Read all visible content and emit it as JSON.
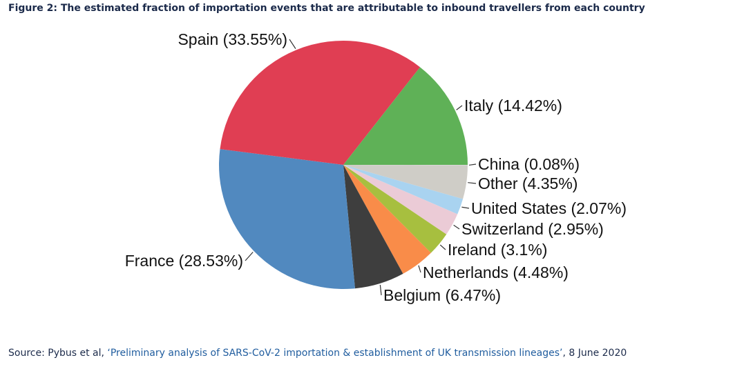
{
  "figure": {
    "title": "Figure 2: The estimated fraction of importation events that are attributable to inbound travellers from each country"
  },
  "source": {
    "prefix": "Source: Pybus et al, ",
    "link_text": "‘Preliminary analysis of SARS-CoV-2 importation & establishment of UK transmission lineages’",
    "suffix": ", 8 June 2020"
  },
  "chart_data": {
    "type": "pie",
    "title": "Figure 2: The estimated fraction of importation events that are attributable to inbound travellers from each country",
    "slices": [
      {
        "name": "China",
        "value": 0.08,
        "label": "China (0.08%)",
        "color": "#d6d6d6"
      },
      {
        "name": "Other",
        "value": 4.35,
        "label": "Other (4.35%)",
        "color": "#cfcdc7"
      },
      {
        "name": "United States",
        "value": 2.07,
        "label": "United States (2.07%)",
        "color": "#a9d3f0"
      },
      {
        "name": "Switzerland",
        "value": 2.95,
        "label": "Switzerland (2.95%)",
        "color": "#ebcbd6"
      },
      {
        "name": "Ireland",
        "value": 3.1,
        "label": "Ireland (3.1%)",
        "color": "#a7bf3f"
      },
      {
        "name": "Netherlands",
        "value": 4.48,
        "label": "Netherlands (4.48%)",
        "color": "#f98c49"
      },
      {
        "name": "Belgium",
        "value": 6.47,
        "label": "Belgium (6.47%)",
        "color": "#3e3e3e"
      },
      {
        "name": "France",
        "value": 28.53,
        "label": "France (28.53%)",
        "color": "#5189bf"
      },
      {
        "name": "Spain",
        "value": 33.55,
        "label": "Spain (33.55%)",
        "color": "#e03e53"
      },
      {
        "name": "Italy",
        "value": 14.42,
        "label": "Italy (14.42%)",
        "color": "#5fb157"
      }
    ],
    "start": "3 o'clock",
    "direction": "clockwise"
  }
}
